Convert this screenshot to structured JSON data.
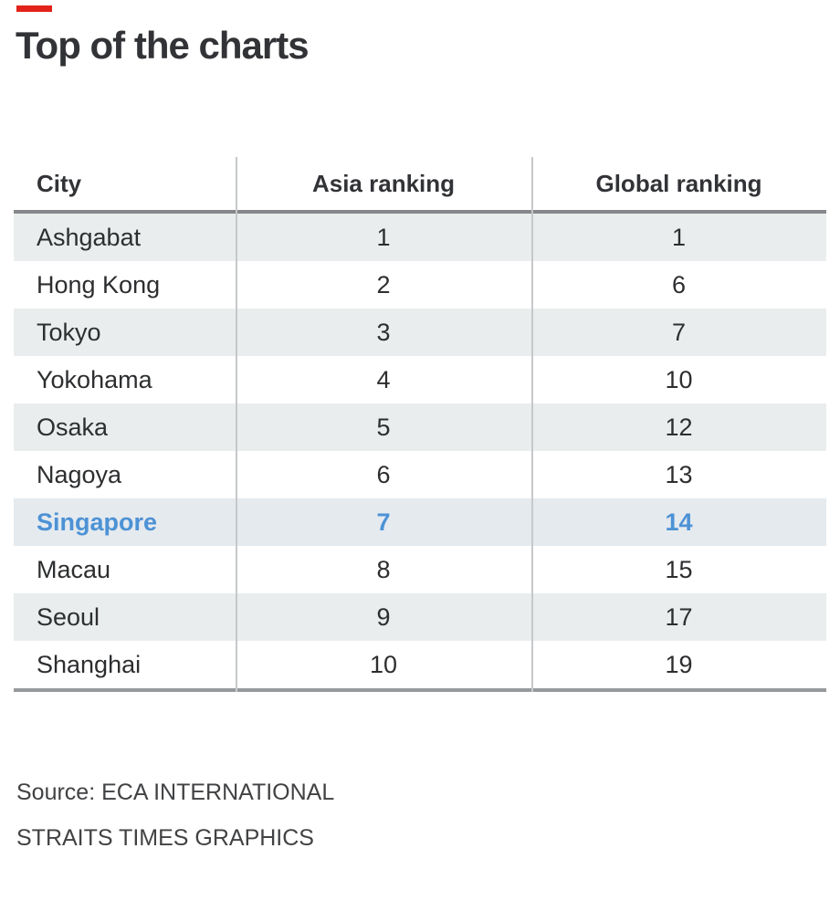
{
  "title": "Top of the charts",
  "accent_color": "#e2231a",
  "highlight_color": "#4d92d5",
  "row_alt_bg": "#e9edee",
  "highlight_row_bg": "#e5eaef",
  "table": {
    "columns": [
      {
        "label": "City"
      },
      {
        "label": "Asia ranking"
      },
      {
        "label": "Global ranking"
      }
    ],
    "rows": [
      {
        "city": "Ashgabat",
        "asia": "1",
        "global": "1",
        "highlight": false
      },
      {
        "city": "Hong Kong",
        "asia": "2",
        "global": "6",
        "highlight": false
      },
      {
        "city": "Tokyo",
        "asia": "3",
        "global": "7",
        "highlight": false
      },
      {
        "city": "Yokohama",
        "asia": "4",
        "global": "10",
        "highlight": false
      },
      {
        "city": "Osaka",
        "asia": "5",
        "global": "12",
        "highlight": false
      },
      {
        "city": "Nagoya",
        "asia": "6",
        "global": "13",
        "highlight": false
      },
      {
        "city": "Singapore",
        "asia": "7",
        "global": "14",
        "highlight": true
      },
      {
        "city": "Macau",
        "asia": "8",
        "global": "15",
        "highlight": false
      },
      {
        "city": "Seoul",
        "asia": "9",
        "global": "17",
        "highlight": false
      },
      {
        "city": "Shanghai",
        "asia": "10",
        "global": "19",
        "highlight": false
      }
    ]
  },
  "source_line1": "Source: ECA INTERNATIONAL",
  "source_line2": "STRAITS TIMES GRAPHICS",
  "chart_data": {
    "type": "table",
    "title": "Top of the charts",
    "columns": [
      "City",
      "Asia ranking",
      "Global ranking"
    ],
    "rows": [
      [
        "Ashgabat",
        1,
        1
      ],
      [
        "Hong Kong",
        2,
        6
      ],
      [
        "Tokyo",
        3,
        7
      ],
      [
        "Yokohama",
        4,
        10
      ],
      [
        "Osaka",
        5,
        12
      ],
      [
        "Nagoya",
        6,
        13
      ],
      [
        "Singapore",
        7,
        14
      ],
      [
        "Macau",
        8,
        15
      ],
      [
        "Seoul",
        9,
        17
      ],
      [
        "Shanghai",
        10,
        19
      ]
    ],
    "highlighted_row": "Singapore",
    "source": "ECA INTERNATIONAL",
    "credit": "STRAITS TIMES GRAPHICS",
    "layout": {
      "zebra_striping": true,
      "column_alignment": [
        "left",
        "center",
        "center"
      ]
    }
  }
}
